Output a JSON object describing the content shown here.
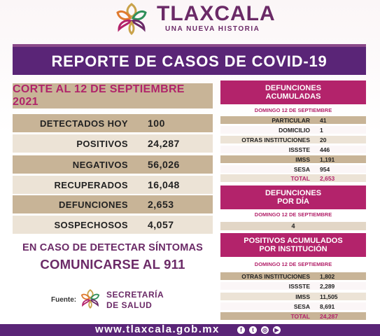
{
  "header": {
    "title": "TLAXCALA",
    "subtitle": "UNA NUEVA HISTORIA"
  },
  "banner": {
    "title": "REPORTE DE CASOS DE COVID-19"
  },
  "corte": "CORTE AL 12 DE SEPTIEMBRE 2021",
  "stats": [
    {
      "label": "DETECTADOS HOY",
      "value": "100"
    },
    {
      "label": "POSITIVOS",
      "value": "24,287"
    },
    {
      "label": "NEGATIVOS",
      "value": "56,026"
    },
    {
      "label": "RECUPERADOS",
      "value": "16,048"
    },
    {
      "label": "DEFUNCIONES",
      "value": "2,653"
    },
    {
      "label": "SOSPECHOSOS",
      "value": "4,057"
    }
  ],
  "message": {
    "line1": "EN CASO DE DETECTAR SÍNTOMAS",
    "line2": "COMUNICARSE AL 911"
  },
  "fuente": {
    "label": "Fuente:",
    "name_line1": "SECRETARÍA",
    "name_line2": "DE SALUD"
  },
  "defunciones_acumuladas": {
    "title_line1": "DEFUNCIONES",
    "title_line2": "ACUMULADAS",
    "date": "DOMINGO 12 DE SEPTIEMBRE",
    "rows": [
      {
        "label": "PARTICULAR",
        "value": "41"
      },
      {
        "label": "DOMICILIO",
        "value": "1"
      },
      {
        "label": "OTRAS INSTITUCIONES",
        "value": "20"
      },
      {
        "label": "ISSSTE",
        "value": "446"
      },
      {
        "label": "IMSS",
        "value": "1,191"
      },
      {
        "label": "SESA",
        "value": "954"
      },
      {
        "label": "TOTAL",
        "value": "2,653"
      }
    ]
  },
  "defunciones_dia": {
    "title_line1": "DEFUNCIONES",
    "title_line2": "POR DÍA",
    "date": "DOMINGO 12 DE SEPTIEMBRE",
    "value": "4"
  },
  "positivos_institucion": {
    "title_line1": "POSITIVOS ACUMULADOS",
    "title_line2": "POR INSTITUCIÓN",
    "date": "DOMINGO 12 DE SEPTIEMBRE",
    "rows": [
      {
        "label": "OTRAS INSTITUCIONES",
        "value": "1,802"
      },
      {
        "label": "ISSSTE",
        "value": "2,289"
      },
      {
        "label": "IMSS",
        "value": "11,505"
      },
      {
        "label": "SESA",
        "value": "8,691"
      },
      {
        "label": "TOTAL",
        "value": "24,287"
      }
    ]
  },
  "footer": {
    "url": "www.tlaxcala.gob.mx",
    "social_icons": [
      "facebook-icon",
      "twitter-icon",
      "instagram-icon",
      "youtube-icon"
    ]
  }
}
